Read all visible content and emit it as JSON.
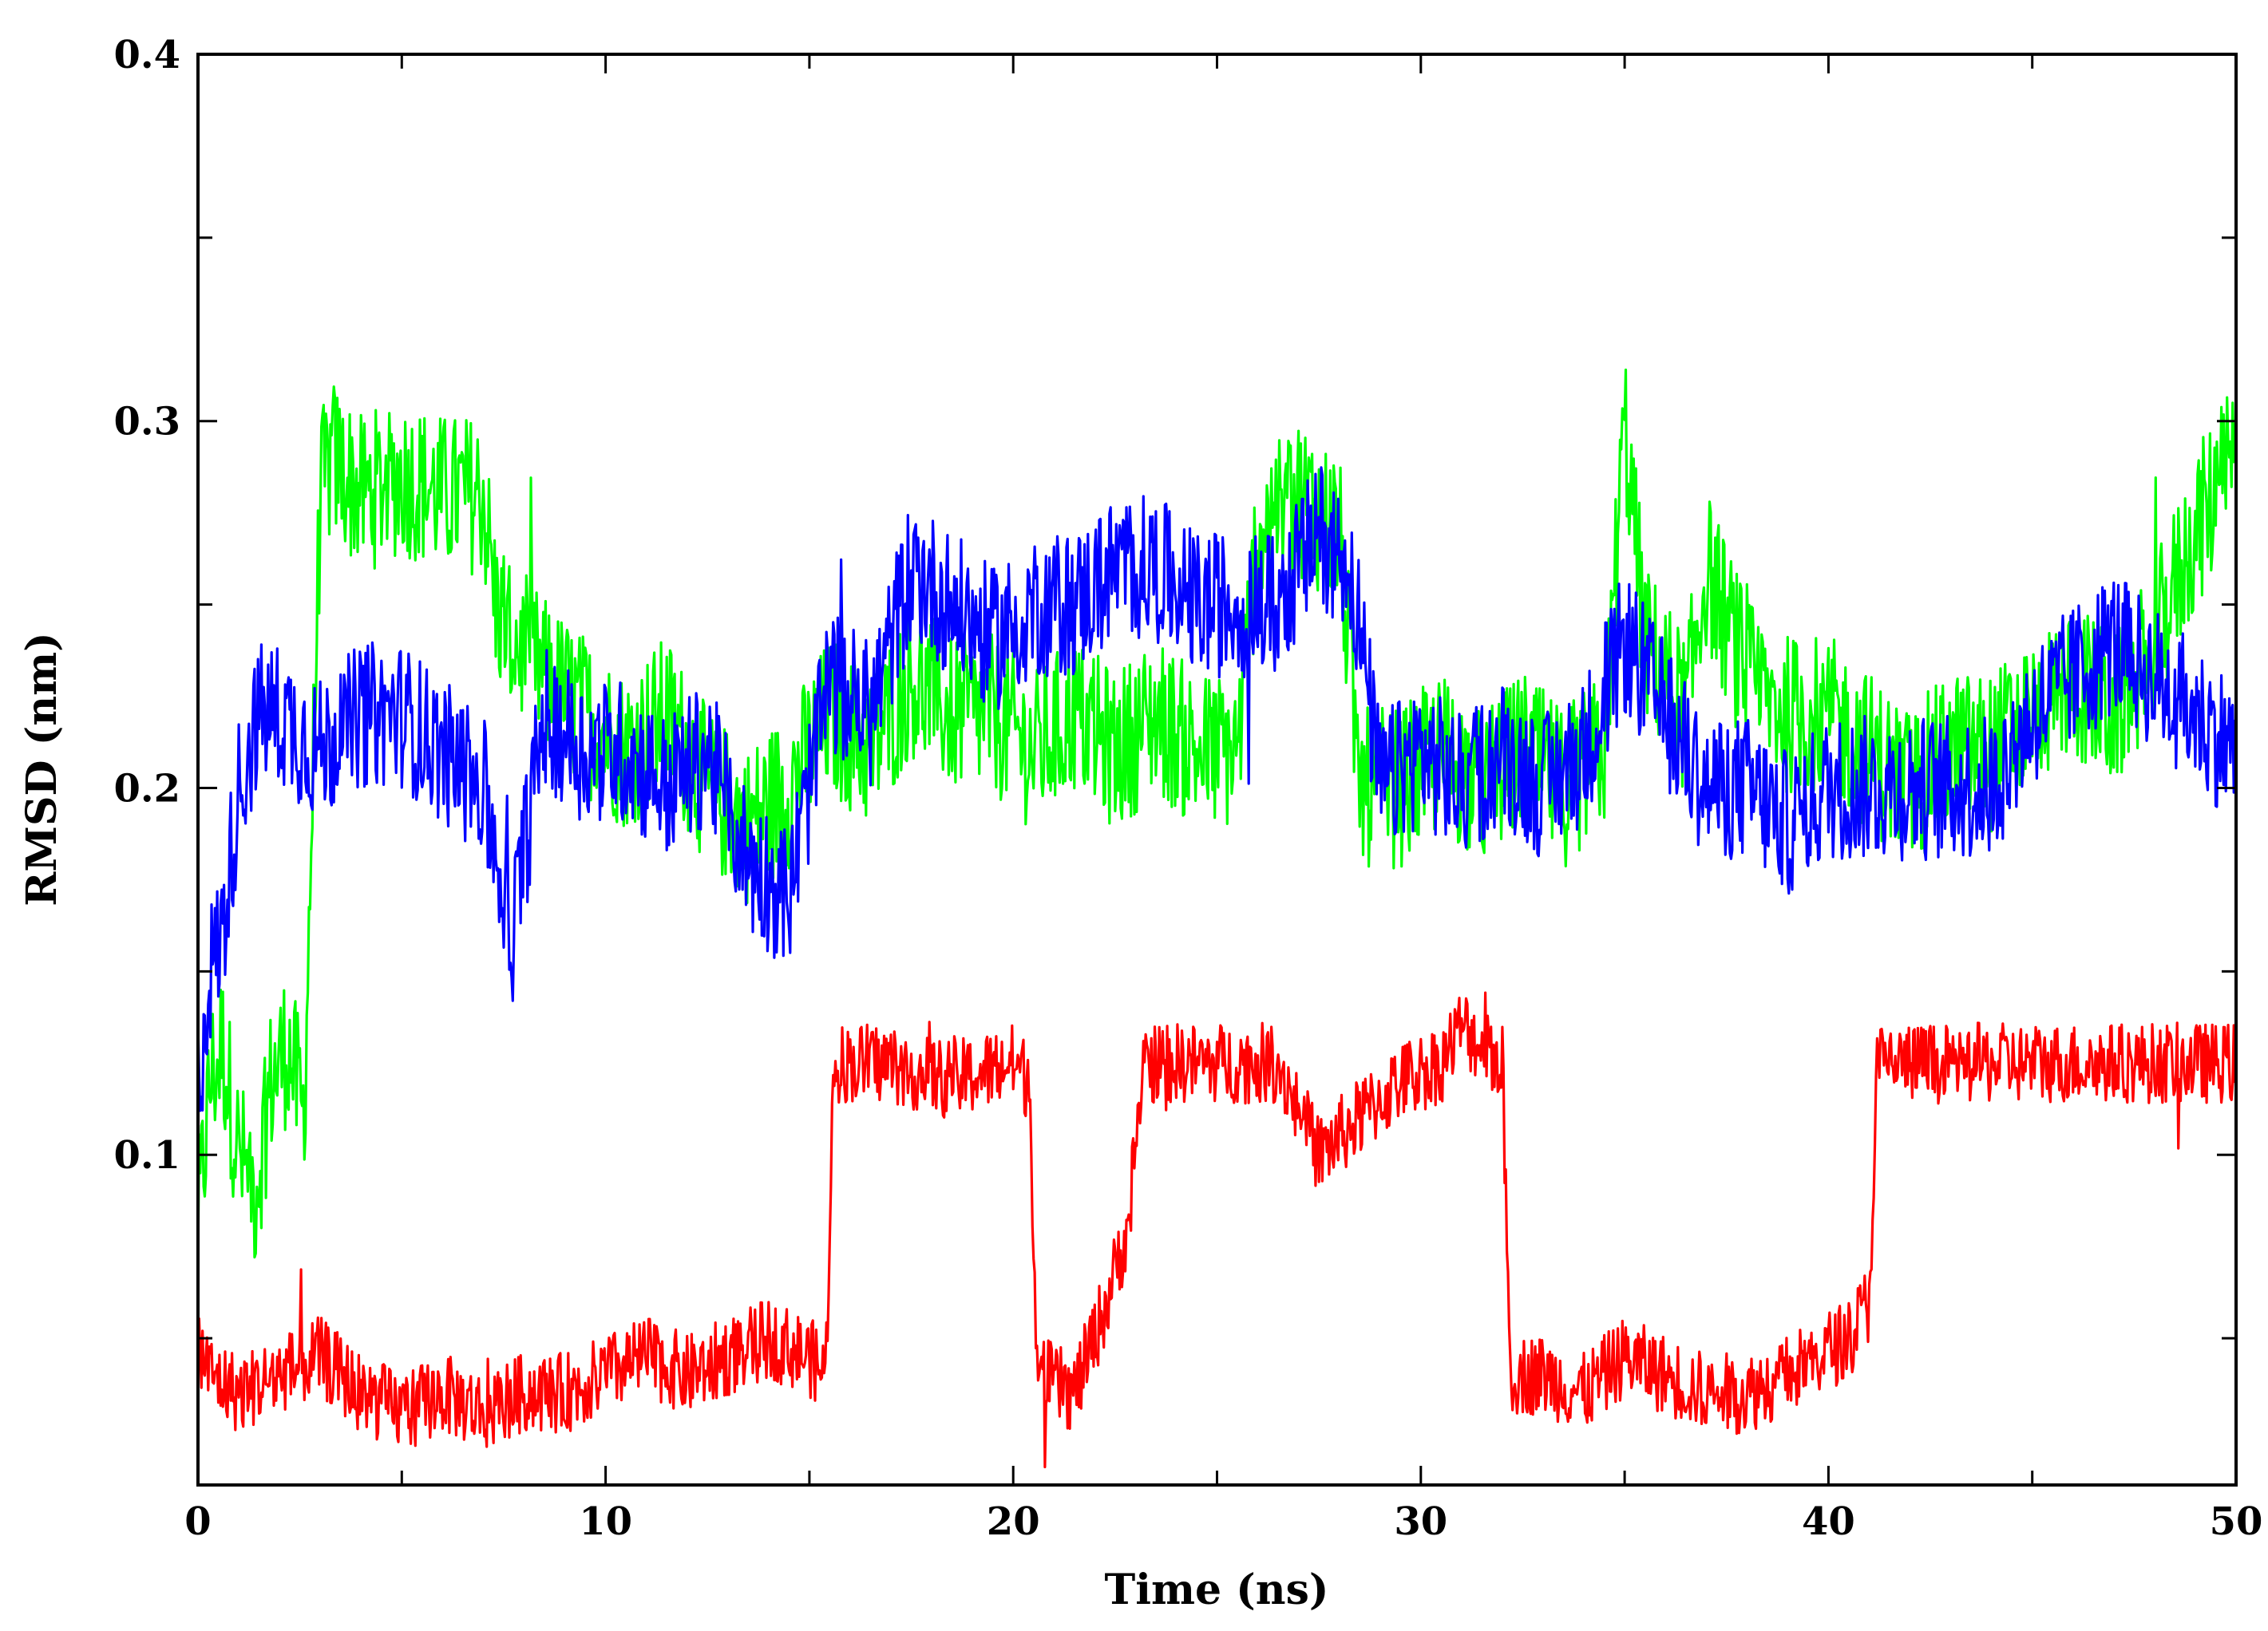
{
  "chart_data": {
    "type": "line",
    "title": "",
    "xlabel": "Time (ns)",
    "ylabel": "RMSD (nm)",
    "xlim": [
      0,
      50
    ],
    "ylim": [
      0.01,
      0.4
    ],
    "x_ticks": [
      "0",
      "10",
      "20",
      "30",
      "40",
      "50"
    ],
    "y_ticks": [
      "0.1",
      "0.2",
      "0.3",
      "0.4"
    ],
    "x_minor_ticks": [
      5,
      15,
      25,
      35,
      45
    ],
    "y_minor_ticks": [
      0.05,
      0.15,
      0.25,
      0.35
    ],
    "grid": false,
    "legend": "none",
    "series": [
      {
        "color": "#00ff00",
        "x": [
          0,
          0.3,
          0.6,
          1.0,
          1.4,
          1.8,
          2.2,
          2.6,
          3.0,
          3.3,
          4.0,
          5.0,
          6.0,
          7.0,
          7.3,
          7.8,
          8.5,
          9.5,
          10.5,
          11.5,
          12.5,
          13.5,
          14.5,
          15.5,
          16.5,
          17.5,
          18.5,
          19.5,
          20.5,
          21.5,
          22.5,
          23.5,
          24.5,
          25.5,
          26.0,
          27.0,
          28.0,
          28.5,
          29.5,
          30.5,
          31.5,
          32.5,
          33.5,
          34.5,
          35.0,
          35.5,
          36.5,
          37.0,
          38.0,
          39.0,
          40.0,
          41.0,
          42.0,
          43.0,
          44.0,
          45.0,
          46.0,
          47.0,
          48.0,
          49.0,
          50.0
        ],
        "y": [
          0.08,
          0.12,
          0.13,
          0.1,
          0.09,
          0.12,
          0.13,
          0.11,
          0.28,
          0.29,
          0.28,
          0.285,
          0.28,
          0.28,
          0.25,
          0.24,
          0.23,
          0.22,
          0.21,
          0.22,
          0.2,
          0.19,
          0.2,
          0.22,
          0.21,
          0.23,
          0.22,
          0.22,
          0.21,
          0.22,
          0.21,
          0.22,
          0.21,
          0.21,
          0.27,
          0.28,
          0.27,
          0.2,
          0.2,
          0.21,
          0.2,
          0.21,
          0.2,
          0.21,
          0.3,
          0.24,
          0.22,
          0.26,
          0.23,
          0.22,
          0.22,
          0.21,
          0.2,
          0.21,
          0.21,
          0.22,
          0.23,
          0.22,
          0.24,
          0.27,
          0.29
        ]
      },
      {
        "color": "#0000ff",
        "x": [
          0,
          0.3,
          0.6,
          1.0,
          1.5,
          2.0,
          3.0,
          4.0,
          5.0,
          6.0,
          7.0,
          7.7,
          8.5,
          9.5,
          10.5,
          11.5,
          12.5,
          13.5,
          14.5,
          15.5,
          16.5,
          17.5,
          18.5,
          19.5,
          20.5,
          21.5,
          22.5,
          23.5,
          24.5,
          25.5,
          26.5,
          27.5,
          28.3,
          29.0,
          30.0,
          31.0,
          32.0,
          33.0,
          34.0,
          35.0,
          36.0,
          37.0,
          38.0,
          39.0,
          40.0,
          41.0,
          42.0,
          43.0,
          44.0,
          45.0,
          46.0,
          47.0,
          48.0,
          49.0,
          50.0
        ],
        "y": [
          0.12,
          0.15,
          0.16,
          0.2,
          0.22,
          0.22,
          0.21,
          0.22,
          0.22,
          0.21,
          0.2,
          0.16,
          0.22,
          0.21,
          0.21,
          0.2,
          0.21,
          0.18,
          0.17,
          0.23,
          0.22,
          0.26,
          0.25,
          0.24,
          0.25,
          0.25,
          0.26,
          0.26,
          0.25,
          0.25,
          0.25,
          0.27,
          0.26,
          0.2,
          0.21,
          0.2,
          0.21,
          0.2,
          0.21,
          0.24,
          0.22,
          0.2,
          0.2,
          0.19,
          0.2,
          0.2,
          0.2,
          0.2,
          0.2,
          0.22,
          0.23,
          0.24,
          0.23,
          0.22,
          0.21
        ]
      },
      {
        "color": "#ff0000",
        "x": [
          0,
          0.3,
          1.0,
          2.0,
          3.0,
          4.0,
          5.0,
          6.0,
          7.0,
          8.0,
          9.0,
          10.0,
          11.0,
          12.0,
          13.0,
          14.0,
          15.0,
          15.4,
          15.6,
          17.0,
          18.5,
          20.0,
          20.4,
          20.6,
          21.5,
          22.3,
          22.8,
          23.2,
          24.5,
          25.5,
          26.5,
          27.5,
          28.5,
          29.5,
          30.5,
          31.0,
          32.0,
          32.2,
          33.0,
          34.0,
          35.0,
          36.0,
          37.0,
          38.0,
          39.0,
          39.7,
          40.5,
          41.0,
          41.2,
          42.5,
          44.0,
          45.5,
          47.0,
          48.5,
          50.0
        ],
        "y": [
          0.05,
          0.04,
          0.035,
          0.04,
          0.045,
          0.035,
          0.03,
          0.035,
          0.03,
          0.035,
          0.035,
          0.04,
          0.045,
          0.04,
          0.045,
          0.05,
          0.045,
          0.04,
          0.125,
          0.125,
          0.12,
          0.125,
          0.12,
          0.04,
          0.035,
          0.06,
          0.08,
          0.125,
          0.125,
          0.125,
          0.125,
          0.1,
          0.11,
          0.12,
          0.125,
          0.135,
          0.125,
          0.04,
          0.04,
          0.035,
          0.045,
          0.04,
          0.035,
          0.035,
          0.04,
          0.045,
          0.05,
          0.06,
          0.125,
          0.125,
          0.125,
          0.125,
          0.125,
          0.125,
          0.125
        ]
      }
    ]
  }
}
